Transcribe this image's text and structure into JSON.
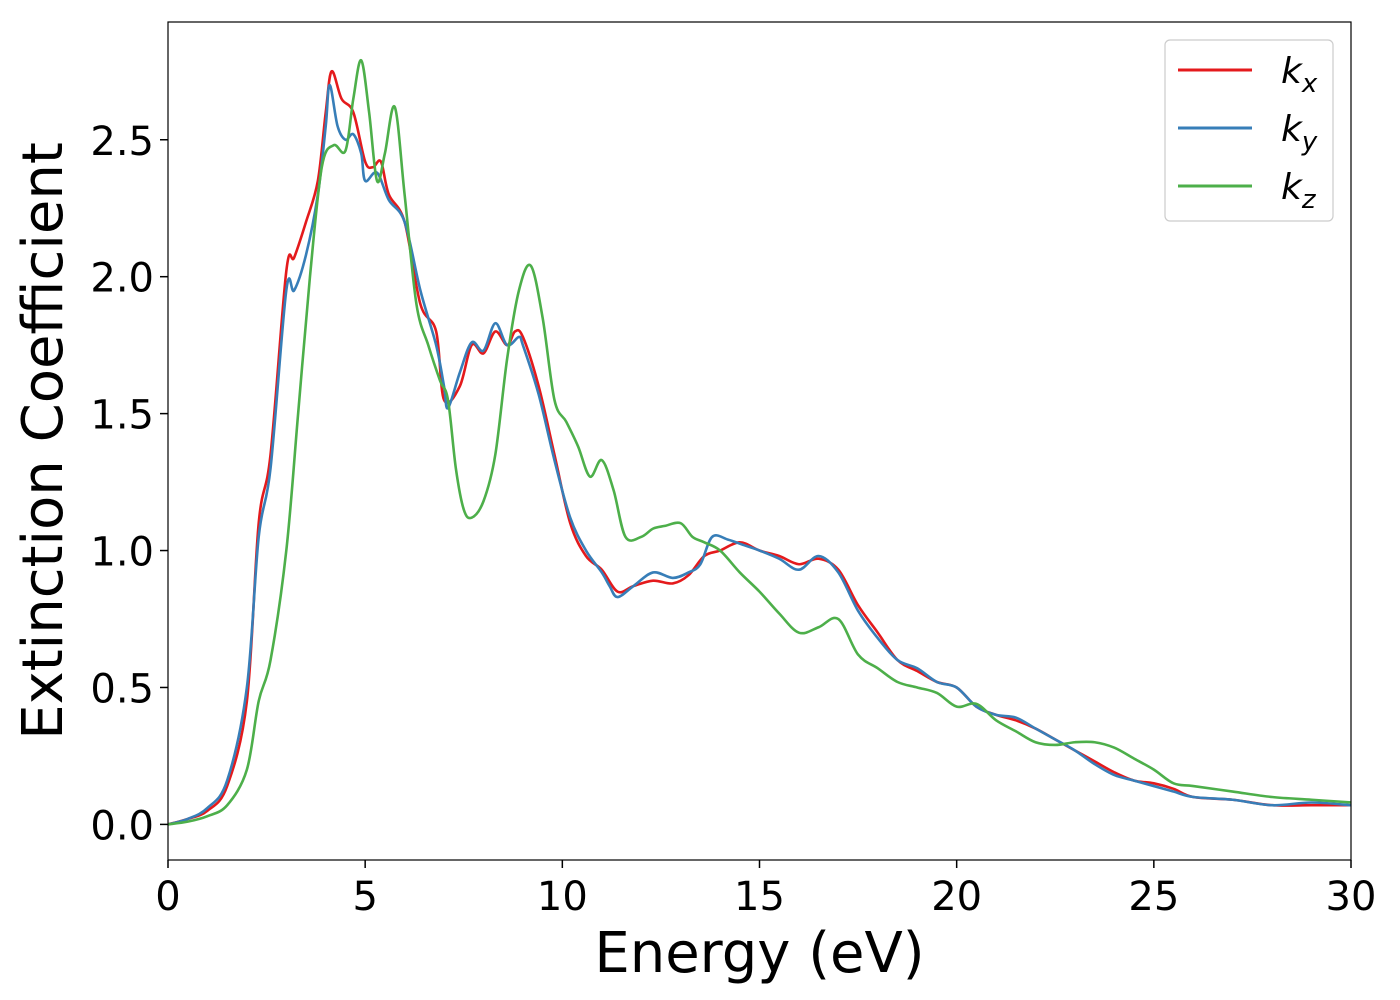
{
  "chart_data": {
    "type": "line",
    "title": "",
    "xlabel": "Energy (eV)",
    "ylabel": "Extinction Coefficient",
    "xlim": [
      0,
      30
    ],
    "ylim": [
      -0.13,
      2.93
    ],
    "xticks": [
      0,
      5,
      10,
      15,
      20,
      25,
      30
    ],
    "xtick_labels": [
      "0",
      "5",
      "10",
      "15",
      "20",
      "25",
      "30"
    ],
    "yticks": [
      0.0,
      0.5,
      1.0,
      1.5,
      2.0,
      2.5
    ],
    "ytick_labels": [
      "0.0",
      "0.5",
      "1.0",
      "1.5",
      "2.0",
      "2.5"
    ],
    "grid": false,
    "legend_position": "top-right",
    "series": [
      {
        "name": "k_x",
        "name_base": "k",
        "name_sub": "x",
        "color": "#e41a1c",
        "x": [
          0,
          0.5,
          1.0,
          1.5,
          2.0,
          2.3,
          2.6,
          3.0,
          3.2,
          3.5,
          3.8,
          4.0,
          4.15,
          4.4,
          4.7,
          5.0,
          5.2,
          5.4,
          5.6,
          6.0,
          6.4,
          6.8,
          7.0,
          7.4,
          7.7,
          8.0,
          8.3,
          8.6,
          8.8,
          9.0,
          9.4,
          9.8,
          10.2,
          10.6,
          11.0,
          11.4,
          11.8,
          12.3,
          12.8,
          13.2,
          13.6,
          14.0,
          14.5,
          15.0,
          15.5,
          16.0,
          16.5,
          17.0,
          17.5,
          18.0,
          18.5,
          19.0,
          19.5,
          20.0,
          20.5,
          21.0,
          21.5,
          22.0,
          22.5,
          23.0,
          23.5,
          24.0,
          24.5,
          25.0,
          25.5,
          26.0,
          27.0,
          28.0,
          29.0,
          30.0
        ],
        "y": [
          0.0,
          0.02,
          0.05,
          0.14,
          0.45,
          1.1,
          1.35,
          2.02,
          2.07,
          2.2,
          2.35,
          2.6,
          2.75,
          2.65,
          2.6,
          2.42,
          2.4,
          2.42,
          2.3,
          2.2,
          1.9,
          1.8,
          1.55,
          1.6,
          1.75,
          1.72,
          1.8,
          1.75,
          1.8,
          1.78,
          1.6,
          1.35,
          1.1,
          0.98,
          0.93,
          0.85,
          0.87,
          0.89,
          0.88,
          0.91,
          0.98,
          1.0,
          1.03,
          1.0,
          0.98,
          0.95,
          0.97,
          0.93,
          0.8,
          0.7,
          0.6,
          0.56,
          0.52,
          0.5,
          0.43,
          0.4,
          0.38,
          0.35,
          0.31,
          0.27,
          0.23,
          0.19,
          0.16,
          0.15,
          0.13,
          0.1,
          0.09,
          0.07,
          0.07,
          0.07
        ]
      },
      {
        "name": "k_y",
        "name_base": "k",
        "name_sub": "y",
        "color": "#377eb8",
        "x": [
          0,
          0.5,
          1.0,
          1.5,
          2.0,
          2.3,
          2.6,
          3.0,
          3.2,
          3.5,
          3.8,
          4.0,
          4.1,
          4.3,
          4.5,
          4.7,
          4.9,
          5.0,
          5.3,
          5.6,
          6.0,
          6.4,
          6.8,
          7.0,
          7.1,
          7.4,
          7.7,
          8.0,
          8.3,
          8.6,
          8.9,
          9.0,
          9.4,
          9.8,
          10.2,
          10.6,
          11.0,
          11.2,
          11.4,
          11.8,
          12.3,
          12.8,
          13.2,
          13.5,
          13.8,
          14.2,
          14.6,
          15.0,
          15.5,
          16.0,
          16.5,
          17.0,
          17.5,
          18.0,
          18.5,
          19.0,
          19.5,
          20.0,
          20.5,
          21.0,
          21.5,
          22.0,
          22.5,
          23.0,
          23.5,
          24.0,
          24.5,
          25.0,
          25.5,
          26.0,
          27.0,
          28.0,
          29.0,
          30.0
        ],
        "y": [
          0.0,
          0.02,
          0.06,
          0.16,
          0.5,
          1.05,
          1.3,
          1.95,
          1.95,
          2.08,
          2.3,
          2.55,
          2.7,
          2.55,
          2.5,
          2.52,
          2.45,
          2.35,
          2.38,
          2.28,
          2.2,
          1.95,
          1.75,
          1.6,
          1.52,
          1.65,
          1.76,
          1.73,
          1.83,
          1.75,
          1.78,
          1.75,
          1.57,
          1.33,
          1.12,
          1.0,
          0.92,
          0.87,
          0.83,
          0.87,
          0.92,
          0.9,
          0.92,
          0.95,
          1.05,
          1.04,
          1.02,
          1.0,
          0.97,
          0.93,
          0.98,
          0.92,
          0.78,
          0.68,
          0.6,
          0.57,
          0.52,
          0.5,
          0.43,
          0.4,
          0.39,
          0.35,
          0.31,
          0.27,
          0.22,
          0.18,
          0.16,
          0.14,
          0.12,
          0.1,
          0.09,
          0.07,
          0.08,
          0.07
        ]
      },
      {
        "name": "k_z",
        "name_base": "k",
        "name_sub": "z",
        "color": "#4daf4a",
        "x": [
          0,
          0.5,
          1.0,
          1.5,
          2.0,
          2.3,
          2.6,
          3.0,
          3.3,
          3.6,
          3.9,
          4.2,
          4.5,
          4.7,
          4.9,
          5.1,
          5.3,
          5.5,
          5.75,
          6.0,
          6.3,
          6.6,
          6.9,
          7.1,
          7.3,
          7.5,
          7.7,
          8.0,
          8.3,
          8.6,
          8.9,
          9.2,
          9.5,
          9.8,
          10.1,
          10.4,
          10.7,
          11.0,
          11.3,
          11.6,
          12.0,
          12.3,
          12.6,
          13.0,
          13.3,
          13.6,
          14.0,
          14.5,
          15.0,
          15.5,
          16.0,
          16.5,
          17.0,
          17.5,
          18.0,
          18.5,
          19.0,
          19.5,
          20.0,
          20.5,
          21.0,
          21.5,
          22.0,
          22.5,
          23.0,
          23.5,
          24.0,
          24.5,
          25.0,
          25.5,
          26.0,
          27.0,
          28.0,
          29.0,
          30.0
        ],
        "y": [
          0.0,
          0.01,
          0.03,
          0.07,
          0.2,
          0.45,
          0.6,
          1.0,
          1.5,
          2.0,
          2.4,
          2.48,
          2.46,
          2.65,
          2.79,
          2.6,
          2.35,
          2.45,
          2.62,
          2.3,
          1.9,
          1.75,
          1.62,
          1.55,
          1.3,
          1.15,
          1.12,
          1.18,
          1.35,
          1.7,
          1.95,
          2.04,
          1.85,
          1.55,
          1.47,
          1.38,
          1.27,
          1.33,
          1.22,
          1.05,
          1.05,
          1.08,
          1.09,
          1.1,
          1.05,
          1.03,
          1.0,
          0.92,
          0.85,
          0.77,
          0.7,
          0.72,
          0.75,
          0.62,
          0.57,
          0.52,
          0.5,
          0.48,
          0.43,
          0.44,
          0.38,
          0.34,
          0.3,
          0.29,
          0.3,
          0.3,
          0.28,
          0.24,
          0.2,
          0.15,
          0.14,
          0.12,
          0.1,
          0.09,
          0.08
        ]
      }
    ]
  }
}
